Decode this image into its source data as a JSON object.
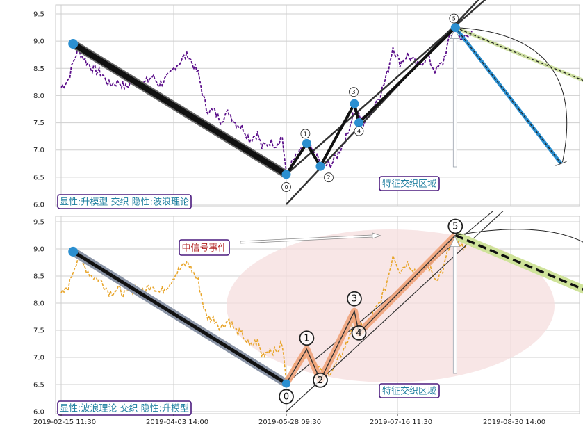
{
  "chart_data": [
    {
      "type": "line",
      "panel": "top",
      "ylim": [
        6.0,
        9.6
      ],
      "yticks": [
        "6.0",
        "6.5",
        "7.0",
        "7.5",
        "8.0",
        "8.5",
        "9.0",
        "9.5"
      ],
      "price_color": "#5b0f8a",
      "price_series": [
        [
          "2019-02-15",
          8.15
        ],
        [
          "2019-02-18",
          8.3
        ],
        [
          "2019-02-20",
          8.6
        ],
        [
          "2019-02-22",
          8.85
        ],
        [
          "2019-02-25",
          8.65
        ],
        [
          "2019-02-28",
          8.5
        ],
        [
          "2019-03-04",
          8.4
        ],
        [
          "2019-03-07",
          8.2
        ],
        [
          "2019-03-11",
          8.25
        ],
        [
          "2019-03-14",
          8.15
        ],
        [
          "2019-03-18",
          8.3
        ],
        [
          "2019-03-21",
          8.2
        ],
        [
          "2019-03-25",
          8.35
        ],
        [
          "2019-03-28",
          8.2
        ],
        [
          "2019-04-01",
          8.35
        ],
        [
          "2019-04-04",
          8.55
        ],
        [
          "2019-04-08",
          8.7
        ],
        [
          "2019-04-10",
          8.75
        ],
        [
          "2019-04-12",
          8.6
        ],
        [
          "2019-04-15",
          8.4
        ],
        [
          "2019-04-17",
          8.05
        ],
        [
          "2019-04-19",
          7.75
        ],
        [
          "2019-04-23",
          7.7
        ],
        [
          "2019-04-26",
          7.55
        ],
        [
          "2019-04-30",
          7.7
        ],
        [
          "2019-05-03",
          7.5
        ],
        [
          "2019-05-07",
          7.4
        ],
        [
          "2019-05-10",
          7.2
        ],
        [
          "2019-05-14",
          7.3
        ],
        [
          "2019-05-16",
          7.05
        ],
        [
          "2019-05-20",
          7.15
        ],
        [
          "2019-05-23",
          7.1
        ],
        [
          "2019-05-26",
          7.25
        ],
        [
          "2019-05-28",
          6.55
        ],
        [
          "2019-05-31",
          6.8
        ],
        [
          "2019-06-04",
          7.0
        ],
        [
          "2019-06-06",
          7.1
        ],
        [
          "2019-06-10",
          6.9
        ],
        [
          "2019-06-13",
          6.7
        ],
        [
          "2019-06-17",
          6.75
        ],
        [
          "2019-06-20",
          6.95
        ],
        [
          "2019-06-24",
          7.3
        ],
        [
          "2019-06-27",
          7.75
        ],
        [
          "2019-07-01",
          7.5
        ],
        [
          "2019-07-04",
          7.7
        ],
        [
          "2019-07-08",
          8.0
        ],
        [
          "2019-07-10",
          8.2
        ],
        [
          "2019-07-12",
          8.5
        ],
        [
          "2019-07-14",
          8.9
        ],
        [
          "2019-07-17",
          8.6
        ],
        [
          "2019-07-20",
          8.75
        ],
        [
          "2019-07-24",
          8.55
        ],
        [
          "2019-07-28",
          8.7
        ],
        [
          "2019-07-31",
          8.45
        ],
        [
          "2019-08-03",
          8.6
        ],
        [
          "2019-08-06",
          9.1
        ],
        [
          "2019-08-08",
          9.2
        ],
        [
          "2019-08-10",
          9.0
        ],
        [
          "2019-08-13",
          9.15
        ],
        [
          "2019-08-15",
          9.1
        ]
      ],
      "swing_line": [
        [
          "2019-02-20",
          8.95
        ],
        [
          "2019-05-28",
          6.55
        ]
      ],
      "waves": {
        "labels": [
          "0",
          "1",
          "2",
          "3",
          "4",
          "5"
        ],
        "points": [
          [
            "2019-05-28",
            6.55
          ],
          [
            "2019-06-06",
            7.12
          ],
          [
            "2019-06-12",
            6.7
          ],
          [
            "2019-06-27",
            7.85
          ],
          [
            "2019-06-29",
            7.5
          ],
          [
            "2019-08-08",
            9.25
          ]
        ]
      },
      "channel_lines": [
        [
          [
            "2019-05-28",
            6.55
          ],
          [
            "2019-08-22",
            9.85
          ]
        ],
        [
          [
            "2019-05-28",
            6.0
          ],
          [
            "2019-08-19",
            9.85
          ]
        ]
      ],
      "projections": [
        {
          "color": "#2b8fd0",
          "to": [
            "2019-09-19",
            6.75
          ]
        },
        {
          "color": "#cfe0a3",
          "to": [
            "2019-10-15",
            7.95
          ]
        }
      ],
      "annotation": "特征交织区域",
      "legend_text": "显性:升模型 交织 隐性:波浪理论"
    },
    {
      "type": "line",
      "panel": "bottom",
      "ylim": [
        6.0,
        9.6
      ],
      "yticks": [
        "6.0",
        "6.5",
        "7.0",
        "7.5",
        "8.0",
        "8.5",
        "9.0",
        "9.5"
      ],
      "price_color": "#e8a52a",
      "swing_line": [
        [
          "2019-02-20",
          8.95
        ],
        [
          "2019-05-28",
          6.52
        ]
      ],
      "waves": {
        "labels": [
          "0",
          "1",
          "2",
          "3",
          "4",
          "5"
        ],
        "points": [
          [
            "2019-05-28",
            6.52
          ],
          [
            "2019-06-06",
            7.15
          ],
          [
            "2019-06-12",
            6.58
          ],
          [
            "2019-06-27",
            7.85
          ],
          [
            "2019-06-29",
            7.45
          ],
          [
            "2019-08-08",
            9.25
          ]
        ]
      },
      "channel_lines": [
        [
          [
            "2019-05-28",
            6.52
          ],
          [
            "2019-08-23",
            9.7
          ]
        ],
        [
          [
            "2019-05-28",
            6.0
          ],
          [
            "2019-08-27",
            9.7
          ]
        ]
      ],
      "projections": [
        {
          "color": "#cfe39a",
          "to": [
            "2019-10-15",
            7.92
          ]
        }
      ],
      "signal_text": "中信号事件",
      "annotation": "特征交织区域",
      "legend_text": "显性:波浪理论 交织 隐性:升模型"
    }
  ],
  "x_axis": {
    "tick_labels": [
      "2019-02-15 11:30",
      "2019-04-03 14:00",
      "2019-05-28 09:30",
      "2019-07-16 11:30",
      "2019-08-30 14:00"
    ],
    "tick_dates": [
      "2019-02-15",
      "2019-04-03",
      "2019-05-28",
      "2019-07-16",
      "2019-08-30"
    ]
  }
}
